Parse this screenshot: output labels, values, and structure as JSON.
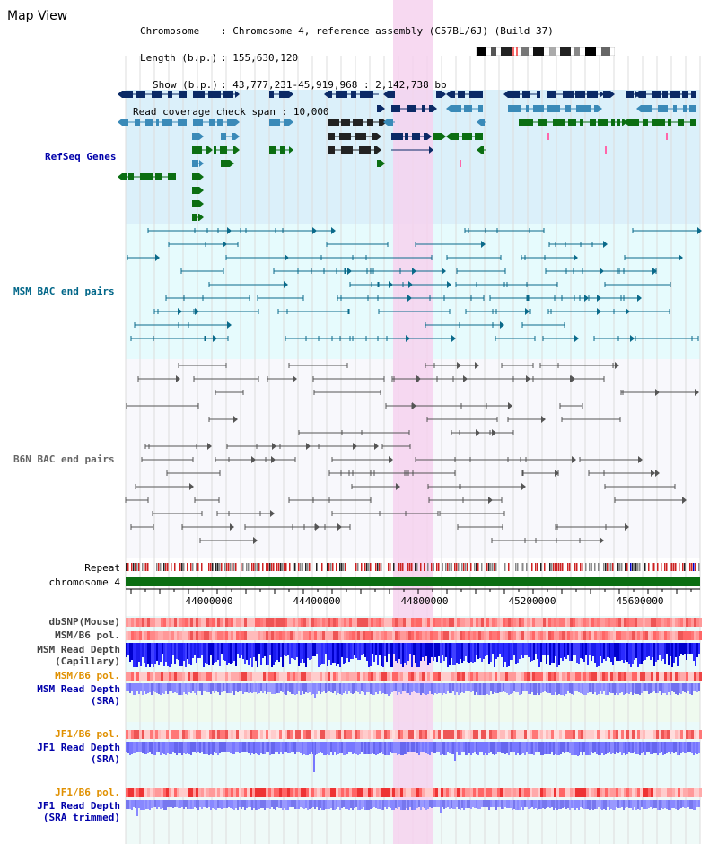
{
  "header": {
    "title": "Map View",
    "chromosome_key": "Chromosome",
    "chromosome_val": ": Chromosome 4, reference assembly (C57BL/6J) (Build 37)",
    "length_key": "Length (b.p.)",
    "length_val": ": 155,630,120",
    "show_key": "Show (b.p.)",
    "show_val": ": 43,777,231-45,919,968 : 2,142,738 bp",
    "coverage_key": "Read coverage check span",
    "coverage_val": ": 10,000"
  },
  "tracks": {
    "refseq": "RefSeq Genes",
    "msm_bac": "MSM BAC end pairs",
    "b6n_bac": "B6N BAC end pairs",
    "repeat": "Repeat",
    "chrom": "chromosome 4",
    "dbsnp": "dbSNP(Mouse)",
    "msm_b6_pol_1": "MSM/B6 pol.",
    "msm_read_depth_cap_1": "MSM Read Depth",
    "msm_read_depth_cap_2": "(Capillary)",
    "msm_b6_pol_2": "MSM/B6 pol.",
    "msm_read_depth_sra_1": "MSM Read Depth",
    "msm_read_depth_sra_2": "(SRA)",
    "jf1_b6_pol_1": "JF1/B6 pol.",
    "jf1_read_depth_sra_1": "JF1 Read Depth",
    "jf1_read_depth_sra_2": "(SRA)",
    "jf1_b6_pol_2": "JF1/B6 pol.",
    "jf1_read_depth_trim_1": "JF1 Read Depth",
    "jf1_read_depth_trim_2": "(SRA trimmed)"
  },
  "axis": {
    "ticks": [
      "44000000",
      "44400000",
      "44800000",
      "45200000",
      "45600000"
    ]
  },
  "colors": {
    "refseq_dark": "#0b2a66",
    "refseq_mid": "#3a8ab8",
    "refseq_green": "#0b6e12",
    "msm_line": "#0a6a8a",
    "b6n_line": "#555555",
    "highlight": "#f6d2ee",
    "label_blue": "#0000aa",
    "label_teal": "#006688",
    "label_orange": "#e09000"
  }
}
